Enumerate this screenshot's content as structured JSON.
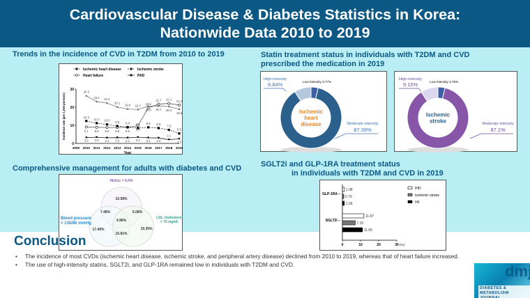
{
  "header": {
    "line1": "Cardiovascular Disease & Diabetes Statistics in Korea:",
    "line2": "Nationwide Data 2010 to 2019"
  },
  "sections": {
    "trends": "Trends in the incidence of CVD in T2DM from 2010 to 2019",
    "management": "Comprehensive management for adults with diabetes and CVD",
    "statin_1": "Statin treatment status in individuals with T2DM and CVD",
    "statin_2": "prescribed the medication in 2019",
    "sglt_1": "SGLT2i and GLP-1RA treatment status",
    "sglt_2": "in individuals with T2DM and CVD in 2019"
  },
  "chart_data": [
    {
      "type": "line",
      "ylabel": "Incidence rate (per 1,000 persons)",
      "xlabel": "Year",
      "x": [
        2009,
        2010,
        2011,
        2012,
        2013,
        2014,
        2015,
        2016,
        2017,
        2018,
        2019
      ],
      "ylim": [
        0,
        30
      ],
      "yticks": [
        0,
        10,
        20,
        30
      ],
      "series": [
        {
          "name": "Ischemic heart disease",
          "x": [
            2010,
            2011,
            2012,
            2013,
            2014,
            2015,
            2016,
            2017,
            2018,
            2019
          ],
          "values": [
            26.3,
            23.1,
            22.3,
            20.1,
            19.0,
            18.7,
            20.6,
            20.7,
            20.4,
            18.9
          ],
          "labels": [
            "26.3",
            "23.1",
            "22.3",
            "20.1",
            "19.0",
            "18.7",
            "20.6",
            "20.7",
            "20.4",
            "18.9"
          ]
        },
        {
          "name": "Heart failure",
          "x": [
            2010,
            2011,
            2012,
            2013,
            2014,
            2015,
            2016,
            2017,
            2018,
            2019
          ],
          "values": [
            9.1,
            8.9,
            8.8,
            8.8,
            8.9,
            9.8,
            19.6,
            21.7,
            22.1,
            21.2
          ],
          "labels": [
            "9.1",
            "8.9",
            "8.8",
            "8.8",
            "8.9",
            "9.8",
            "19.6",
            "21.7",
            "22.1",
            "21.2"
          ]
        },
        {
          "name": "Ischemic stroke",
          "x": [
            2010,
            2011,
            2012,
            2013,
            2014,
            2015,
            2016,
            2017,
            2018,
            2019
          ],
          "values": [
            12.4,
            11.2,
            10.5,
            9.6,
            9.0,
            8.5,
            8.9,
            8.5,
            7.5,
            5.5
          ],
          "labels": [
            "12.4",
            "11.2",
            "10.5",
            "9.6",
            "9.0",
            "8.5",
            "8.9",
            "8.5",
            "7.5",
            "5.5"
          ]
        },
        {
          "name": "PAD",
          "x": [
            2010,
            2011,
            2012,
            2013,
            2014,
            2015,
            2016,
            2017,
            2018,
            2019
          ],
          "values": [
            3.2,
            3.4,
            3.1,
            3.2,
            3.1,
            3.4,
            3.1,
            3.0,
            2.1,
            2.5
          ],
          "labels": [
            "3.2",
            "3.4",
            "3.1",
            "3.2",
            "3.1",
            "3.4",
            "3.1",
            "3.0",
            "2.1",
            "2.5"
          ]
        }
      ]
    },
    {
      "type": "pie",
      "title": "Ischemic heart disease",
      "slices": [
        {
          "label": "Moderate-intensity",
          "value": 87.39,
          "text": "87.39%"
        },
        {
          "label": "High-intensity",
          "value": 8.84,
          "text": "8.84%"
        },
        {
          "label": "Low-intensity",
          "value": 3.77,
          "text": "3.77%"
        }
      ],
      "colors": [
        "#2b5f8c",
        "#b3c8dd",
        "#3e5fa3"
      ],
      "center": [
        "Ischemic",
        "heart",
        "disease"
      ]
    },
    {
      "type": "pie",
      "title": "Ischemic stroke",
      "slices": [
        {
          "label": "Moderate-intensity",
          "value": 87.1,
          "text": "87.1%"
        },
        {
          "label": "High-intensity",
          "value": 9.15,
          "text": "9.15%"
        },
        {
          "label": "Low-intensity",
          "value": 3.75,
          "text": "3.75%"
        }
      ],
      "colors": [
        "#8756a8",
        "#dcd6ee",
        "#3e5fa3"
      ],
      "center": [
        "Ischemic",
        "stroke"
      ]
    },
    {
      "type": "bar",
      "orientation": "horizontal",
      "categories": [
        "GLP-1RA",
        "SGLT2i"
      ],
      "unit": "(%)",
      "xlim": [
        0,
        30
      ],
      "xticks": [
        0,
        10,
        20,
        30
      ],
      "series": [
        {
          "name": "IHD",
          "values": [
            1.08,
            11.87
          ],
          "labels": [
            "1.08",
            "11.87"
          ]
        },
        {
          "name": "Ischemic stroke",
          "values": [
            0.79,
            7.1
          ],
          "labels": [
            "0.79",
            "7.10"
          ]
        },
        {
          "name": "HF",
          "values": [
            1.06,
            11.05
          ],
          "labels": [
            "1.06",
            "11.05"
          ]
        }
      ]
    }
  ],
  "venn": {
    "sets": [
      "HbA1c < 6.5%",
      "Blood pressure",
      "< 130/80 mmHg",
      "LDL cholesterol",
      "< 70 mg/dL"
    ],
    "regions": {
      "a_only": "10.58%",
      "b_only": "17.49%",
      "c_only": "19.35%",
      "ab": "7.48%",
      "ac": "5.08%",
      "bc": "15.81%",
      "abc": "4.96%"
    }
  },
  "conclusion": {
    "title": "Conclusion",
    "items": [
      "The incidence of most CVDs (ischemic heart disease, ischemic stroke, and peripheral artery disease) declined from 2010 to 2019, whereas that of heart failure increased.",
      "The use of high-intensity statins, SGLT2i, and GLP-1RA remained low in individuals with T2DM and CVD."
    ]
  },
  "logo": {
    "line1": "DIABETES &",
    "line2": "METABOLISM JOURNAL",
    "mark": "dmj"
  }
}
